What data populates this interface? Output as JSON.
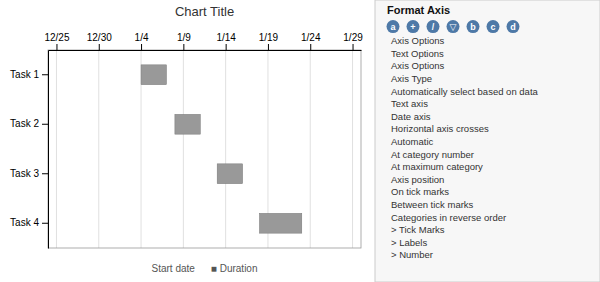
{
  "chart_data": {
    "type": "bar",
    "orientation": "horizontal",
    "stacked": true,
    "title": "Chart Title",
    "categories": [
      "Task 1",
      "Task 2",
      "Task 3",
      "Task 4"
    ],
    "series": [
      {
        "name": "Start date",
        "color": "none",
        "values": [
          10,
          14,
          19,
          24
        ]
      },
      {
        "name": "■ Duration",
        "color": "#999999",
        "values": [
          3,
          3,
          3,
          5
        ]
      }
    ],
    "xlim": [
      -1,
      36
    ],
    "xticks": [
      {
        "value": 0,
        "label": "12/25"
      },
      {
        "value": 5,
        "label": "12/30"
      },
      {
        "value": 10,
        "label": "1/4"
      },
      {
        "value": 15,
        "label": "1/9"
      },
      {
        "value": 20,
        "label": "1/14"
      },
      {
        "value": 25,
        "label": "1/19"
      },
      {
        "value": 30,
        "label": "1/24"
      },
      {
        "value": 35,
        "label": "1/29"
      }
    ],
    "grid": true,
    "legend": "bottom",
    "annotations": [
      "a",
      "+",
      "/",
      "▽",
      "Format Axis",
      "Axis Options",
      "Text Options",
      "b",
      "c",
      "Axis Options",
      "Axis Type",
      "Automatically select based on data",
      "Text axis",
      "Date axis",
      "Horizontal axis crosses",
      "Automatic",
      "At category number",
      "At maximum category",
      "Axis position",
      "On tick marks",
      "Between tick marks",
      "d",
      "Categories in reverse order",
      "> Tick Marks",
      "> Labels",
      "> Number"
    ]
  }
}
